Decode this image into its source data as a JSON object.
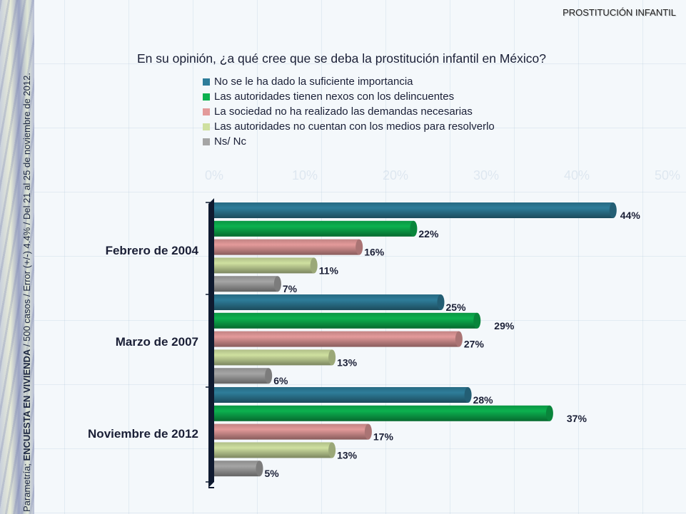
{
  "header": {
    "section_title": "PROSTITUCIÓN INFANTIL"
  },
  "side_note": {
    "prefix": "Parametría; ",
    "bold": "ENCUESTA EN VIVIENDA",
    "suffix": " / 500 casos / Error (+/-) 4.4% / Del 21 al 25 de noviembre de 2012."
  },
  "chart_data": {
    "type": "bar",
    "orientation": "horizontal",
    "title": "En su opinión, ¿a qué cree que se deba la prostitución infantil en México?",
    "categories": [
      "Febrero de 2004",
      "Marzo de 2007",
      "Noviembre de 2012"
    ],
    "series": [
      {
        "name": "No se le ha dado la suficiente importancia",
        "color": "#2e7d9a",
        "values": [
          44,
          25,
          28
        ]
      },
      {
        "name": "Las autoridades tienen nexos con los delincuentes",
        "color": "#0cb14f",
        "values": [
          22,
          29,
          37
        ]
      },
      {
        "name": "La sociedad no ha realizado las demandas necesarias",
        "color": "#e39a9a",
        "values": [
          16,
          27,
          17
        ]
      },
      {
        "name": "Las autoridades no cuentan con los medios para resolverlo",
        "color": "#cfe0a0",
        "values": [
          11,
          13,
          13
        ]
      },
      {
        "name": "Ns/ Nc",
        "color": "#a5a5a5",
        "values": [
          7,
          6,
          5
        ]
      }
    ],
    "value_suffix": "%",
    "x_ticks": [
      "0%",
      "10%",
      "20%",
      "30%",
      "40%",
      "50%"
    ],
    "xlim": [
      0,
      50
    ],
    "legend_position": "top",
    "grid": false
  }
}
